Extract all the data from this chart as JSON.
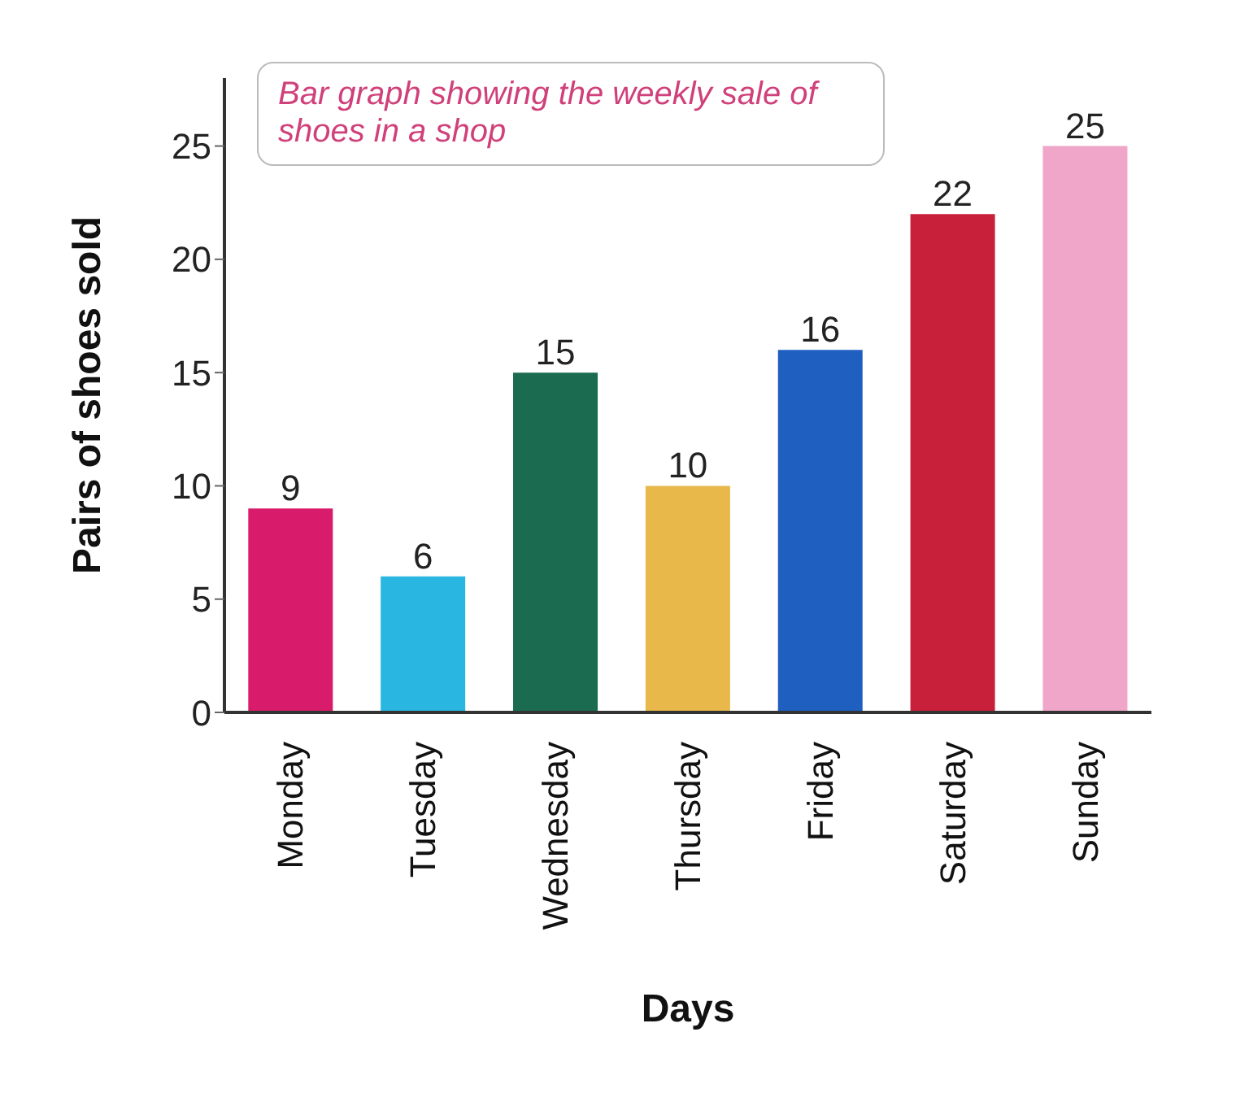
{
  "chart_data": {
    "type": "bar",
    "title": "Bar graph showing the weekly sale of shoes in a shop",
    "xlabel": "Days",
    "ylabel": "Pairs of shoes sold",
    "categories": [
      "Monday",
      "Tuesday",
      "Wednesday",
      "Thursday",
      "Friday",
      "Saturday",
      "Sunday"
    ],
    "values": [
      9,
      6,
      15,
      10,
      16,
      22,
      25
    ],
    "colors": [
      "#d81b6a",
      "#29b6e0",
      "#1a6b50",
      "#e8b84a",
      "#1f5fc0",
      "#c8203a",
      "#f0a6c8"
    ],
    "ylim": [
      0,
      28
    ],
    "yticks": [
      0,
      5,
      10,
      15,
      20,
      25
    ],
    "data_labels": true,
    "grid": false
  }
}
